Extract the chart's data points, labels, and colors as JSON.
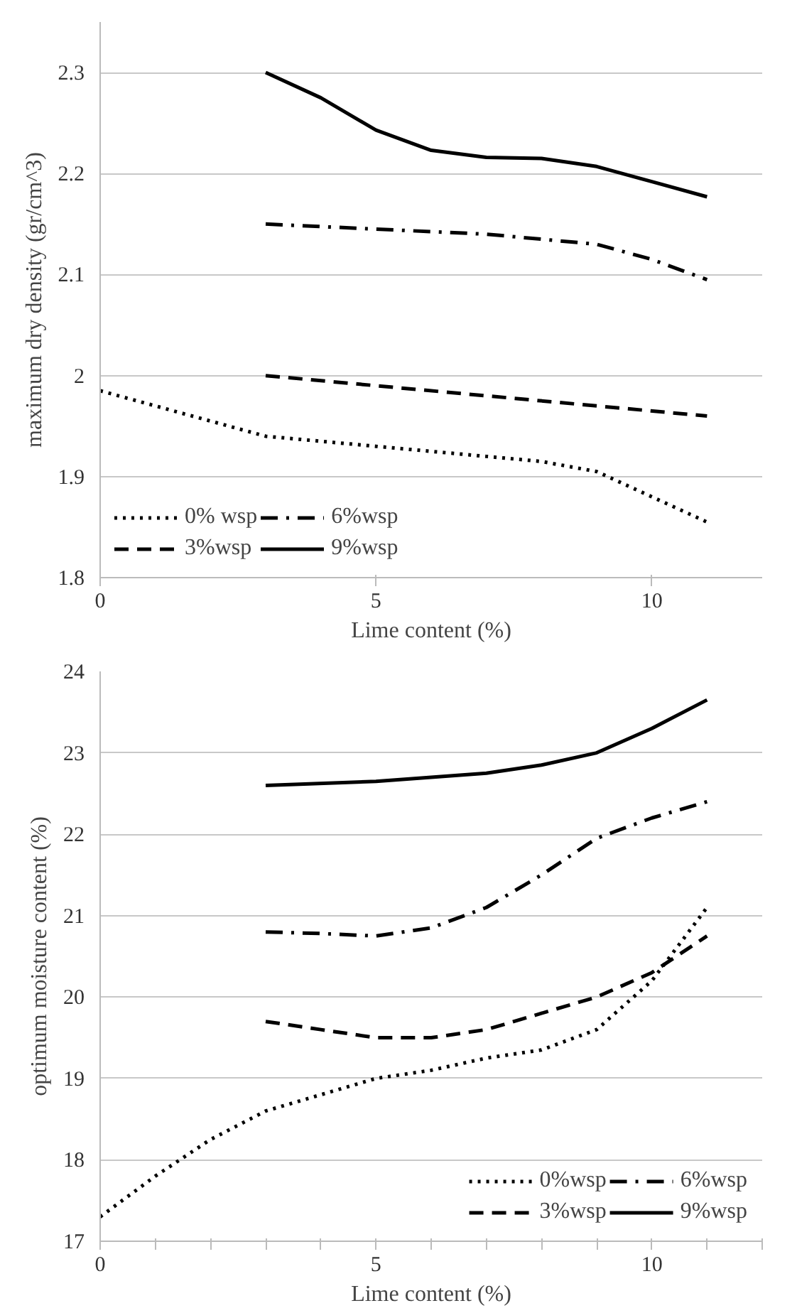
{
  "chart_data": [
    {
      "type": "line",
      "xlabel": "Lime content (%)",
      "ylabel": "maximum dry density (gr/cm^3)",
      "xlim": [
        0,
        12
      ],
      "xticks": [
        0,
        5,
        10
      ],
      "ylim": [
        1.8,
        2.35
      ],
      "yticks": [
        1.8,
        1.9,
        2,
        2.1,
        2.2,
        2.3
      ],
      "grid": "y",
      "legend": "bottom left",
      "marker": "none",
      "series": [
        {
          "name": "0% wsp",
          "color": "#000000",
          "line_style": "dotted",
          "x": [
            0,
            1,
            2,
            3,
            5,
            7,
            8,
            9,
            10,
            11
          ],
          "values": [
            1.985,
            1.97,
            1.955,
            1.94,
            1.93,
            1.92,
            1.915,
            1.905,
            1.88,
            1.855
          ]
        },
        {
          "name": "3%wsp",
          "color": "#000000",
          "line_style": "dashed",
          "x": [
            3,
            5,
            7,
            9,
            11
          ],
          "values": [
            2.0,
            1.99,
            1.98,
            1.97,
            1.96
          ]
        },
        {
          "name": "6%wsp",
          "color": "#000000",
          "line_style": "dashdot",
          "x": [
            3,
            5,
            7,
            9,
            10,
            11
          ],
          "values": [
            2.15,
            2.145,
            2.14,
            2.13,
            2.115,
            2.095
          ]
        },
        {
          "name": "9%wsp",
          "color": "#000000",
          "line_style": "solid",
          "x": [
            3,
            4,
            5,
            6,
            7,
            8,
            9,
            10,
            11
          ],
          "values": [
            2.3,
            2.275,
            2.243,
            2.223,
            2.216,
            2.215,
            2.207,
            2.192,
            2.177
          ]
        }
      ]
    },
    {
      "type": "line",
      "xlabel": "Lime content (%)",
      "ylabel": "optimum moisture content (%)",
      "xlim": [
        0,
        12
      ],
      "xticks": [
        0,
        {
          "value": 1,
          "label": null
        },
        {
          "value": 2,
          "label": null
        },
        {
          "value": 3,
          "label": null
        },
        {
          "value": 4,
          "label": null
        },
        5,
        {
          "value": 6,
          "label": null
        },
        {
          "value": 7,
          "label": null
        },
        {
          "value": 8,
          "label": null
        },
        {
          "value": 9,
          "label": null
        },
        10,
        {
          "value": 11,
          "label": null
        },
        {
          "value": 12,
          "label": null
        }
      ],
      "ylim": [
        17,
        24
      ],
      "yticks": [
        17,
        18,
        19,
        20,
        21,
        22,
        23,
        24
      ],
      "grid": "y",
      "legend": "bottom right",
      "marker": "none",
      "series": [
        {
          "name": "0%wsp",
          "color": "#000000",
          "line_style": "dotted",
          "x": [
            0,
            1,
            2,
            3,
            4,
            5,
            6,
            7,
            8,
            9,
            10,
            11
          ],
          "values": [
            17.3,
            17.8,
            18.25,
            18.6,
            18.8,
            19.0,
            19.1,
            19.25,
            19.35,
            19.6,
            20.2,
            21.1
          ]
        },
        {
          "name": "3%wsp",
          "color": "#000000",
          "line_style": "dashed",
          "x": [
            3,
            4,
            5,
            6,
            7,
            8,
            9,
            10,
            11
          ],
          "values": [
            19.7,
            19.6,
            19.5,
            19.5,
            19.6,
            19.8,
            20.0,
            20.3,
            20.75
          ]
        },
        {
          "name": "6%wsp",
          "color": "#000000",
          "line_style": "dashdot",
          "x": [
            3,
            4,
            5,
            6,
            7,
            8,
            9,
            10,
            11
          ],
          "values": [
            20.8,
            20.78,
            20.75,
            20.85,
            21.1,
            21.5,
            21.95,
            22.2,
            22.4
          ]
        },
        {
          "name": "9%wsp",
          "color": "#000000",
          "line_style": "solid",
          "x": [
            3,
            5,
            6,
            7,
            8,
            9,
            10,
            11
          ],
          "values": [
            22.6,
            22.65,
            22.7,
            22.75,
            22.85,
            23.0,
            23.3,
            23.65
          ]
        }
      ]
    }
  ]
}
